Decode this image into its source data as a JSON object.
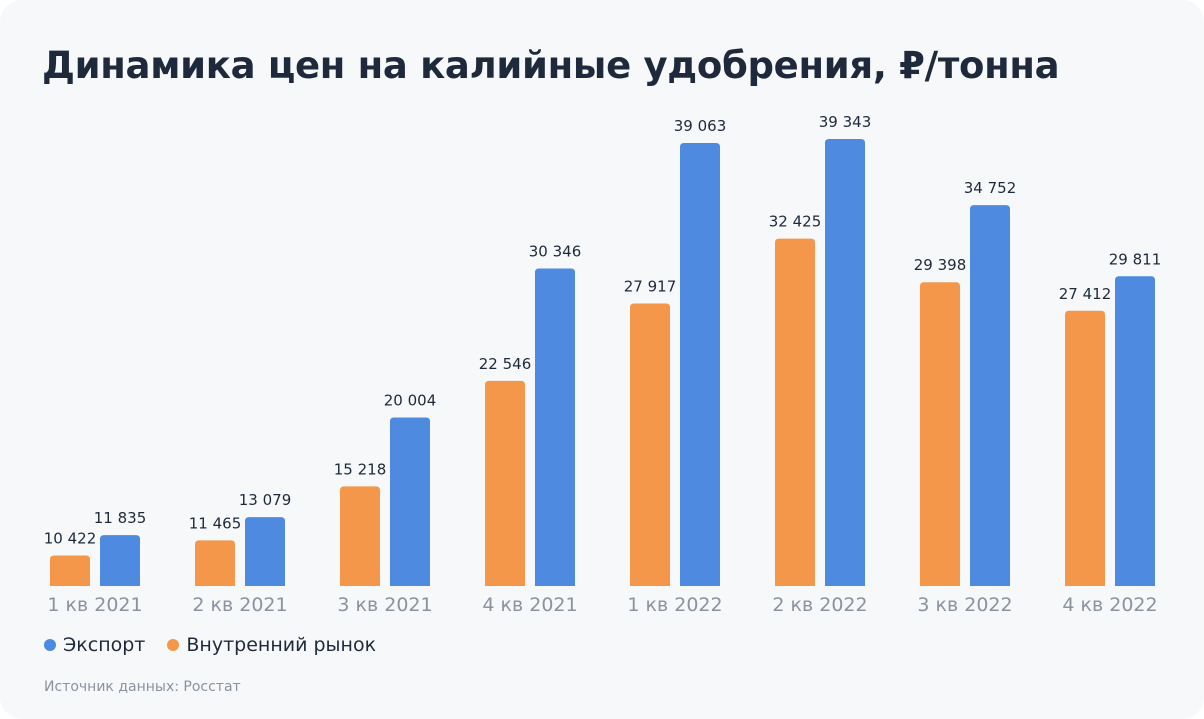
{
  "chart_data": {
    "type": "bar",
    "title": "Динамика цен на калийные удобрения, ₽/тонна",
    "categories": [
      "1 кв 2021",
      "2 кв 2021",
      "3 кв 2021",
      "4 кв 2021",
      "1 кв 2022",
      "2 кв 2022",
      "3 кв 2022",
      "4 кв 2022"
    ],
    "series": [
      {
        "name": "Внутренний рынок",
        "color": "#f4974b",
        "values": [
          10422,
          11465,
          15218,
          22546,
          27917,
          32425,
          29398,
          27412
        ],
        "labels": [
          "10 422",
          "11 465",
          "15 218",
          "22 546",
          "27 917",
          "32 425",
          "29 398",
          "27 412"
        ]
      },
      {
        "name": "Экспорт",
        "color": "#4e8ae0",
        "values": [
          11835,
          13079,
          20004,
          30346,
          39063,
          39343,
          34752,
          29811
        ],
        "labels": [
          "11 835",
          "13 079",
          "20 004",
          "30 346",
          "39 063",
          "39 343",
          "34 752",
          "29 811"
        ]
      }
    ],
    "legend_order": [
      "Экспорт",
      "Внутренний рынок"
    ],
    "legend": "bottom-left",
    "ylim": [
      8300,
      39343
    ],
    "grid": false,
    "xlabel": "",
    "ylabel": ""
  },
  "source": "Источник данных: Росстат"
}
